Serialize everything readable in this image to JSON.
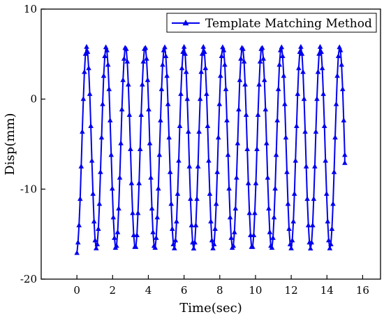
{
  "chart_data": {
    "type": "line",
    "xlabel": "Time(sec)",
    "ylabel": "Disp(mm)",
    "xlim": [
      -2,
      17
    ],
    "ylim": [
      -20,
      10
    ],
    "x_ticks": [
      0,
      2,
      4,
      6,
      8,
      10,
      12,
      14,
      16
    ],
    "y_ticks": [
      10,
      0,
      -10,
      -20
    ],
    "y_tick_labels": [
      "10",
      "0",
      "-10",
      "-20"
    ],
    "legend_position": "top-right",
    "series": [
      {
        "name": "Template Matching Method",
        "color": "#0000ee",
        "marker": "triangle",
        "waveform": {
          "center": -5.4,
          "amplitude": 11.2,
          "period_sec": 1.09,
          "phase_rad": -1.5708,
          "x_start": 0.0,
          "x_end": 15.0,
          "sample_step": 0.06
        },
        "end_value": -7.1,
        "start_value": -17.1
      }
    ]
  }
}
